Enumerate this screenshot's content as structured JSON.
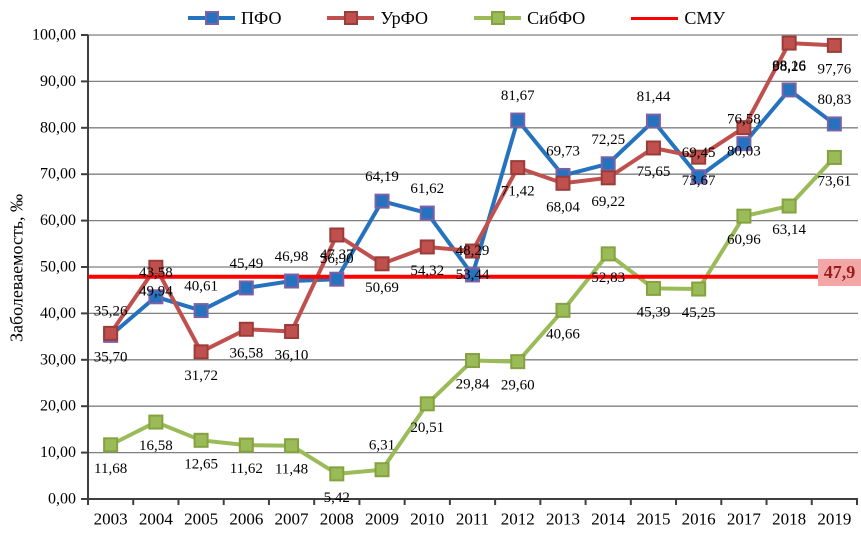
{
  "legend": [
    {
      "label": "ПФО",
      "series_index": 0
    },
    {
      "label": "УрФО",
      "series_index": 1
    },
    {
      "label": "СибФО",
      "series_index": 2
    },
    {
      "label": "СМУ",
      "series_index": 3
    }
  ],
  "y_axis": {
    "title": "Заболеваемость, ‰",
    "ticks": [
      "0,00",
      "10,00",
      "20,00",
      "30,00",
      "40,00",
      "50,00",
      "60,00",
      "70,00",
      "80,00",
      "90,00",
      "100,00"
    ]
  },
  "x_axis": {
    "years": [
      "2003",
      "2004",
      "2005",
      "2006",
      "2007",
      "2008",
      "2009",
      "2010",
      "2011",
      "2012",
      "2013",
      "2014",
      "2015",
      "2016",
      "2017",
      "2018",
      "2019"
    ]
  },
  "smu_badge": {
    "label": "47,9",
    "bg": "#F2A6A6",
    "text_color": "#9C1C1C"
  },
  "colors": {
    "grid": "#7F7F7F",
    "axis": "#3F3F3F",
    "smu_line": "#FE0000"
  },
  "chart_data": {
    "type": "line",
    "title": "",
    "xlabel": "",
    "ylabel": "Заболеваемость, ‰",
    "ylim": [
      0,
      100
    ],
    "ytick_step": 10,
    "grid": "horizontal",
    "legend_position": "top",
    "x": [
      "2003",
      "2004",
      "2005",
      "2006",
      "2007",
      "2008",
      "2009",
      "2010",
      "2011",
      "2012",
      "2013",
      "2014",
      "2015",
      "2016",
      "2017",
      "2018",
      "2019"
    ],
    "series": [
      {
        "name": "ПФО",
        "color": "#2573BE",
        "marker": "square",
        "marker_border": "#7D61A6",
        "label_side": "above",
        "values": [
          35.26,
          43.58,
          40.61,
          45.49,
          46.98,
          47.37,
          64.19,
          61.62,
          48.29,
          81.67,
          69.73,
          72.25,
          81.44,
          69.45,
          76.58,
          88.16,
          80.83
        ],
        "labels": [
          "35,26",
          "43,58",
          "40,61",
          "45,49",
          "46,98",
          "47,37",
          "64,19",
          "61,62",
          "48,29",
          "81,67",
          "69,73",
          "72,25",
          "81,44",
          "69,45",
          "76,58",
          "88,16",
          "80,83"
        ]
      },
      {
        "name": "УрФО",
        "color": "#C0504D",
        "marker": "square",
        "marker_border": "#9A3D3A",
        "label_side": "below",
        "values": [
          35.7,
          49.94,
          31.72,
          36.58,
          36.1,
          56.9,
          50.69,
          54.32,
          53.44,
          71.42,
          68.04,
          69.22,
          75.65,
          73.67,
          80.03,
          98.26,
          97.76
        ],
        "labels": [
          "35,70",
          "49,94",
          "31,72",
          "36,58",
          "36,10",
          "56,90",
          "50,69",
          "54,32",
          "53,44",
          "71,42",
          "68,04",
          "69,22",
          "75,65",
          "73,67",
          "80,03",
          "98,26",
          "97,76"
        ]
      },
      {
        "name": "СибФО",
        "color": "#9BBB59",
        "marker": "square",
        "marker_border": "#84A23F",
        "label_side": "below",
        "label_side_overrides": {
          "6": "above"
        },
        "values": [
          11.68,
          16.58,
          12.65,
          11.62,
          11.48,
          5.42,
          6.31,
          20.51,
          29.84,
          29.6,
          40.66,
          52.83,
          45.39,
          45.25,
          60.96,
          63.14,
          73.61
        ],
        "labels": [
          "11,68",
          "16,58",
          "12,65",
          "11,62",
          "11,48",
          "5,42",
          "6,31",
          "20,51",
          "29,84",
          "29,60",
          "40,66",
          "52,83",
          "45,39",
          "45,25",
          "60,96",
          "63,14",
          "73,61"
        ]
      },
      {
        "name": "СМУ",
        "color": "#FE0000",
        "hline": true,
        "value": 47.9,
        "label": "47,9"
      }
    ]
  }
}
